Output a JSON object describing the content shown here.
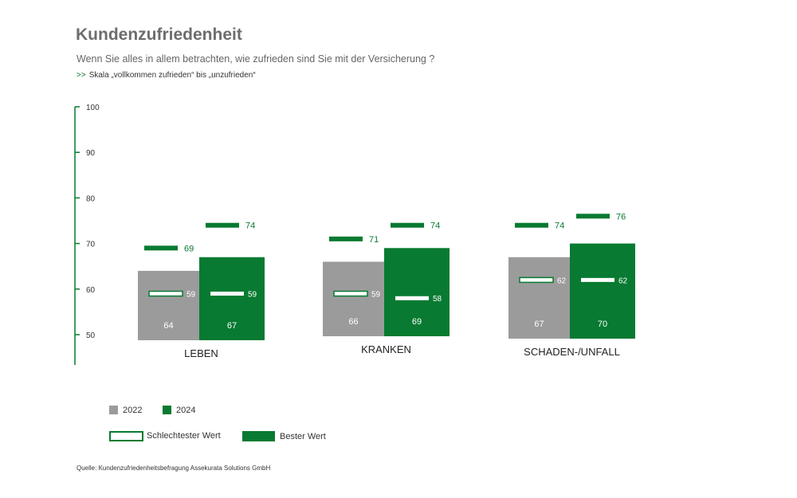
{
  "title": "Kundenzufriedenheit",
  "subtitle": "Wenn Sie alles in allem betrachten, wie zufrieden sind Sie mit der Versicherung ?",
  "scale_prefix": ">>",
  "scale_text": "Skala „vollkommen zufrieden“ bis „unzufrieden“",
  "source": "Quelle: Kundenzufriedenheitsbefragung Assekurata Solutions GmbH",
  "colors": {
    "grey": "#9b9b9b",
    "green": "#087a31",
    "white": "#ffffff"
  },
  "legend": {
    "year1": "2022",
    "year2": "2024",
    "worst": "Schlechtester Wert",
    "best": "Bester Wert"
  },
  "chart_data": {
    "type": "bar",
    "categories": [
      "LEBEN",
      "KRANKEN",
      "SCHADEN-/UNFALL"
    ],
    "yticks": [
      50,
      60,
      70,
      80,
      90,
      100
    ],
    "series": [
      {
        "name": "2022",
        "values": [
          64,
          66,
          67
        ],
        "worst": [
          59,
          59,
          62
        ],
        "best": [
          69,
          71,
          74
        ]
      },
      {
        "name": "2024",
        "values": [
          67,
          69,
          70
        ],
        "worst": [
          59,
          58,
          62
        ],
        "best": [
          74,
          74,
          76
        ]
      }
    ]
  }
}
